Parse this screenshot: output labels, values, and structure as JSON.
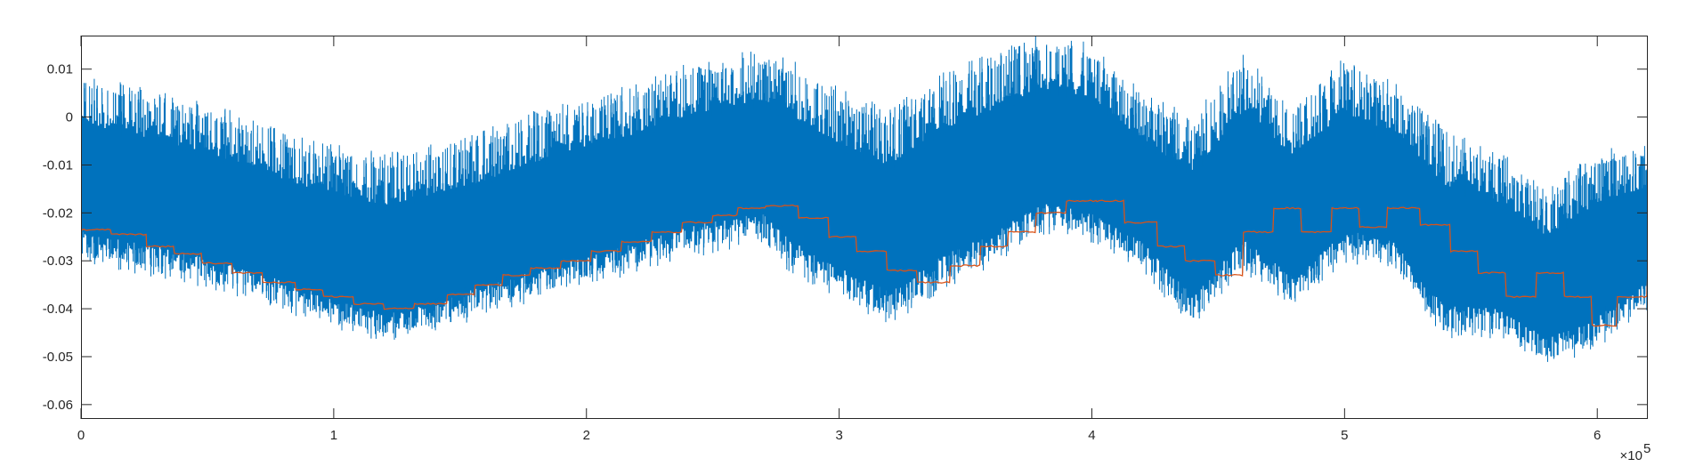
{
  "chart_data": {
    "type": "line",
    "title": "",
    "xlabel": "",
    "ylabel": "",
    "xlim": [
      0,
      620000
    ],
    "ylim": [
      -0.063,
      0.017
    ],
    "x_ticks": [
      0,
      100000,
      200000,
      300000,
      400000,
      500000,
      600000
    ],
    "x_tick_labels": [
      "0",
      "1",
      "2",
      "3",
      "4",
      "5",
      "6"
    ],
    "x_exponent_label": "×10",
    "x_exponent_power": "5",
    "y_ticks": [
      0.01,
      0,
      -0.01,
      -0.02,
      -0.03,
      -0.04,
      -0.05,
      -0.06
    ],
    "y_tick_labels": [
      "0.01",
      "0",
      "-0.01",
      "-0.02",
      "-0.03",
      "-0.04",
      "-0.05",
      "-0.06"
    ],
    "grid": false,
    "box": true,
    "series": [
      {
        "color": "#0072BD",
        "style": "dense noisy band",
        "x": [
          0,
          20000,
          40000,
          60000,
          80000,
          100000,
          120000,
          140000,
          160000,
          180000,
          200000,
          220000,
          240000,
          260000,
          270000,
          280000,
          300000,
          320000,
          340000,
          360000,
          380000,
          400000,
          420000,
          440000,
          460000,
          480000,
          500000,
          520000,
          540000,
          560000,
          580000,
          600000,
          620000
        ],
        "upper_envelope": [
          0.006,
          0.004,
          0.001,
          -0.002,
          -0.006,
          -0.009,
          -0.011,
          -0.009,
          -0.006,
          -0.002,
          0.001,
          0.004,
          0.008,
          0.01,
          0.011,
          0.009,
          0.003,
          -0.002,
          0.006,
          0.01,
          0.014,
          0.012,
          0.002,
          -0.003,
          0.01,
          0.0,
          0.009,
          0.004,
          -0.006,
          -0.01,
          -0.018,
          -0.01,
          -0.008
        ],
        "lower_envelope": [
          -0.028,
          -0.03,
          -0.032,
          -0.035,
          -0.038,
          -0.042,
          -0.045,
          -0.043,
          -0.039,
          -0.036,
          -0.033,
          -0.03,
          -0.027,
          -0.025,
          -0.024,
          -0.03,
          -0.036,
          -0.041,
          -0.034,
          -0.029,
          -0.022,
          -0.024,
          -0.03,
          -0.042,
          -0.03,
          -0.038,
          -0.028,
          -0.03,
          -0.044,
          -0.044,
          -0.05,
          -0.046,
          -0.038
        ]
      },
      {
        "color": "#D95319",
        "style": "stepped mean line",
        "x": [
          0,
          12000,
          26000,
          37000,
          48000,
          60000,
          72000,
          85000,
          96000,
          108000,
          120000,
          132000,
          145000,
          156000,
          167000,
          178000,
          190000,
          202000,
          214000,
          226000,
          238000,
          250000,
          260000,
          271000,
          284000,
          296000,
          307000,
          319000,
          331000,
          344000,
          356000,
          367000,
          378000,
          390000,
          402000,
          413000,
          426000,
          437000,
          449000,
          460000,
          472000,
          483000,
          495000,
          506000,
          517000,
          530000,
          542000,
          553000,
          564000,
          576000,
          587000,
          598000,
          608000,
          620000
        ],
        "y": [
          -0.0235,
          -0.0245,
          -0.027,
          -0.0285,
          -0.0305,
          -0.0325,
          -0.0345,
          -0.036,
          -0.0375,
          -0.039,
          -0.04,
          -0.039,
          -0.037,
          -0.035,
          -0.033,
          -0.0315,
          -0.03,
          -0.028,
          -0.026,
          -0.024,
          -0.022,
          -0.0205,
          -0.019,
          -0.0185,
          -0.021,
          -0.025,
          -0.028,
          -0.032,
          -0.0345,
          -0.031,
          -0.027,
          -0.024,
          -0.02,
          -0.0175,
          -0.0175,
          -0.022,
          -0.027,
          -0.03,
          -0.033,
          -0.024,
          -0.019,
          -0.024,
          -0.019,
          -0.023,
          -0.019,
          -0.0225,
          -0.028,
          -0.0325,
          -0.0375,
          -0.0325,
          -0.0375,
          -0.0435,
          -0.0375,
          -0.0315
        ]
      }
    ]
  }
}
